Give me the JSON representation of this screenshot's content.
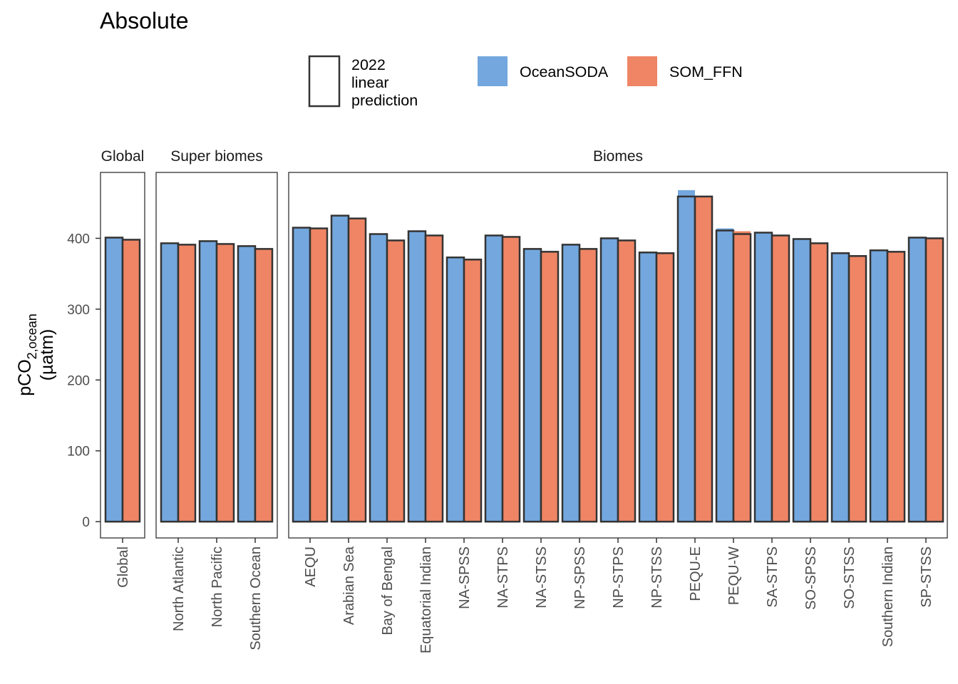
{
  "chart_data": {
    "type": "bar",
    "title": "Absolute",
    "ylabel_main": "pCO",
    "ylabel_sub": "2,ocean",
    "ylabel_unit": "(µatm)",
    "ylim": [
      -23,
      493
    ],
    "yticks": [
      0,
      100,
      200,
      300,
      400
    ],
    "legend": {
      "outline_label_lines": [
        "2022",
        "linear",
        "prediction"
      ],
      "series_labels": [
        "OceanSODA",
        "SOM_FFN"
      ]
    },
    "colors": {
      "OceanSODA": "#73A7DE",
      "SOM_FFN": "#EF8564",
      "outline": "#333333"
    },
    "panels": [
      {
        "label": "Global",
        "categories": [
          "Global"
        ],
        "series": [
          {
            "name": "OceanSODA",
            "values": [
              400
            ],
            "prediction": [
              401
            ]
          },
          {
            "name": "SOM_FFN",
            "values": [
              397
            ],
            "prediction": [
              398
            ]
          }
        ]
      },
      {
        "label": "Super biomes",
        "categories": [
          "North Atlantic",
          "North Pacific",
          "Southern Ocean"
        ],
        "series": [
          {
            "name": "OceanSODA",
            "values": [
              392,
              395,
              389
            ],
            "prediction": [
              393,
              396,
              389
            ]
          },
          {
            "name": "SOM_FFN",
            "values": [
              390,
              392,
              384
            ],
            "prediction": [
              391,
              392,
              385
            ]
          }
        ]
      },
      {
        "label": "Biomes",
        "categories": [
          "AEQU",
          "Arabian Sea",
          "Bay of Bengal",
          "Equatorial Indian",
          "NA-SPSS",
          "NA-STPS",
          "NA-STSS",
          "NP-SPSS",
          "NP-STPS",
          "NP-STSS",
          "PEQU-E",
          "PEQU-W",
          "SA-STPS",
          "SO-SPSS",
          "SO-STSS",
          "Southern Indian",
          "SP-STSS"
        ],
        "series": [
          {
            "name": "OceanSODA",
            "values": [
              414,
              431,
              406,
              410,
              372,
              404,
              385,
              391,
              400,
              380,
              468,
              414,
              408,
              399,
              379,
              383,
              401
            ],
            "prediction": [
              415,
              432,
              406,
              410,
              373,
              404,
              385,
              391,
              400,
              380,
              459,
              411,
              408,
              399,
              379,
              383,
              401
            ]
          },
          {
            "name": "SOM_FFN",
            "values": [
              414,
              428,
              396,
              404,
              369,
              402,
              381,
              385,
              397,
              379,
              459,
              410,
              404,
              393,
              375,
              381,
              400
            ],
            "prediction": [
              414,
              428,
              397,
              404,
              370,
              402,
              381,
              385,
              397,
              379,
              459,
              406,
              404,
              393,
              375,
              381,
              400
            ]
          }
        ]
      }
    ]
  }
}
